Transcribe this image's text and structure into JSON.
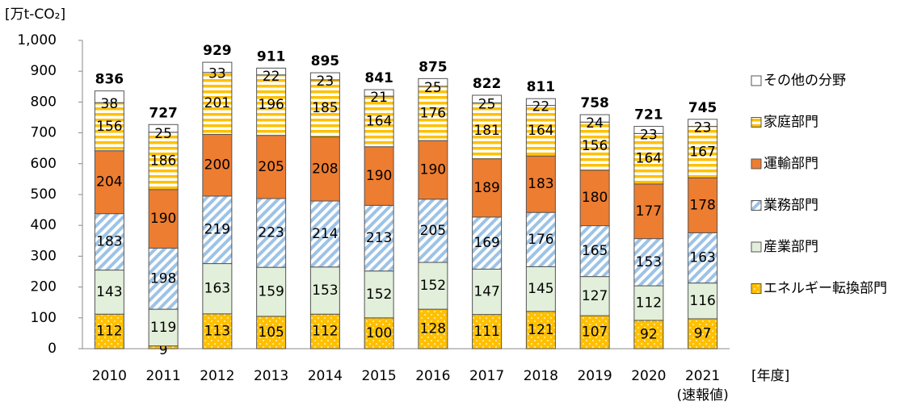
{
  "chart_data": {
    "type": "stacked_bar",
    "y_label": "[万t-CO₂]",
    "x_label": "[年度]",
    "categories": [
      "2010",
      "2011",
      "2012",
      "2013",
      "2014",
      "2015",
      "2016",
      "2017",
      "2018",
      "2019",
      "2020",
      "2021"
    ],
    "category_note": "(速報値)",
    "ylim": [
      0,
      1000
    ],
    "yticks": [
      0,
      100,
      200,
      300,
      400,
      500,
      600,
      700,
      800,
      900,
      {
        "value": 1000,
        "label": "1,000"
      }
    ],
    "grid": false,
    "legend": "right",
    "series": [
      {
        "name": "エネルギー転換部門",
        "color": "#ffc000",
        "pattern": "dots",
        "values": [
          112,
          9,
          113,
          105,
          112,
          100,
          128,
          111,
          121,
          107,
          92,
          97
        ]
      },
      {
        "name": "産業部門",
        "color": "#e2efda",
        "pattern": "solid",
        "values": [
          143,
          119,
          163,
          159,
          153,
          152,
          152,
          147,
          145,
          127,
          112,
          116
        ]
      },
      {
        "name": "業務部門",
        "color": "#9dc3e6",
        "pattern": "diagonal",
        "values": [
          183,
          198,
          219,
          223,
          214,
          213,
          205,
          169,
          176,
          165,
          153,
          163
        ]
      },
      {
        "name": "運輸部門",
        "color": "#ed7d31",
        "pattern": "solid",
        "values": [
          204,
          190,
          200,
          205,
          208,
          190,
          190,
          189,
          183,
          180,
          177,
          178
        ]
      },
      {
        "name": "家庭部門",
        "color": "#ffc000",
        "pattern": "horizontal",
        "values": [
          156,
          186,
          201,
          196,
          185,
          164,
          176,
          181,
          164,
          156,
          164,
          167
        ]
      },
      {
        "name": "その他の分野",
        "color": "#ffffff",
        "pattern": "solid",
        "values": [
          38,
          25,
          33,
          22,
          23,
          21,
          25,
          25,
          22,
          24,
          23,
          23
        ]
      }
    ],
    "totals": [
      836,
      727,
      929,
      911,
      895,
      841,
      875,
      822,
      811,
      758,
      721,
      745
    ]
  }
}
